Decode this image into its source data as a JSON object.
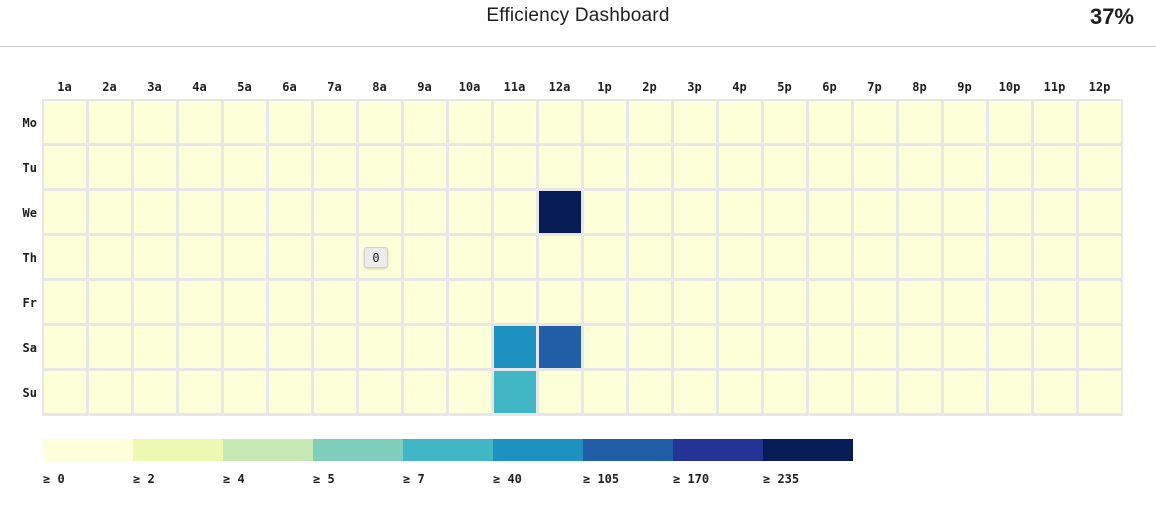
{
  "header": {
    "title": "Efficiency Dashboard",
    "efficiency_value": "37%"
  },
  "heatmap": {
    "hour_labels": [
      "1a",
      "2a",
      "3a",
      "4a",
      "5a",
      "6a",
      "7a",
      "8a",
      "9a",
      "10a",
      "11a",
      "12a",
      "1p",
      "2p",
      "3p",
      "4p",
      "5p",
      "6p",
      "7p",
      "8p",
      "9p",
      "10p",
      "11p",
      "12p"
    ],
    "day_labels": [
      "Mo",
      "Tu",
      "We",
      "Th",
      "Fr",
      "Sa",
      "Su"
    ],
    "base_color": "#fdffd9",
    "grid_line_color": "#e7e7e9",
    "highlighted_cells": [
      {
        "day": "We",
        "hour": "12a",
        "color": "#081d58",
        "bin": "≥ 235"
      },
      {
        "day": "Sa",
        "hour": "11a",
        "color": "#1d91c0",
        "bin": "≥ 40"
      },
      {
        "day": "Sa",
        "hour": "12a",
        "color": "#225ea8",
        "bin": "≥ 105"
      },
      {
        "day": "Su",
        "hour": "11a",
        "color": "#41b6c4",
        "bin": "≥ 7"
      }
    ],
    "tooltip": {
      "day": "Th",
      "hour": "8a",
      "value": "0"
    }
  },
  "legend": {
    "items": [
      {
        "label": "≥ 0",
        "color": "#ffffd9"
      },
      {
        "label": "≥ 2",
        "color": "#edf8b1"
      },
      {
        "label": "≥ 4",
        "color": "#c7e9b4"
      },
      {
        "label": "≥ 5",
        "color": "#7fcdbb"
      },
      {
        "label": "≥ 7",
        "color": "#41b6c4"
      },
      {
        "label": "≥ 40",
        "color": "#1d91c0"
      },
      {
        "label": "≥ 105",
        "color": "#225ea8"
      },
      {
        "label": "≥ 170",
        "color": "#253494"
      },
      {
        "label": "≥ 235",
        "color": "#081d58"
      }
    ]
  },
  "chart_data": {
    "type": "heatmap",
    "title": "Efficiency Dashboard",
    "x": [
      "1a",
      "2a",
      "3a",
      "4a",
      "5a",
      "6a",
      "7a",
      "8a",
      "9a",
      "10a",
      "11a",
      "12a",
      "1p",
      "2p",
      "3p",
      "4p",
      "5p",
      "6p",
      "7p",
      "8p",
      "9p",
      "10p",
      "11p",
      "12p"
    ],
    "y": [
      "Mo",
      "Tu",
      "We",
      "Th",
      "Fr",
      "Sa",
      "Su"
    ],
    "default_bin": "≥ 0",
    "cells": [
      {
        "x": "12a",
        "y": "We",
        "bin": "≥ 235",
        "color": "#081d58"
      },
      {
        "x": "8a",
        "y": "Th",
        "value": 0,
        "annotation": "0"
      },
      {
        "x": "11a",
        "y": "Sa",
        "bin": "≥ 40",
        "color": "#1d91c0"
      },
      {
        "x": "12a",
        "y": "Sa",
        "bin": "≥ 105",
        "color": "#225ea8"
      },
      {
        "x": "11a",
        "y": "Su",
        "bin": "≥ 7",
        "color": "#41b6c4"
      }
    ],
    "legend_bins": [
      {
        "label": "≥ 0",
        "color": "#ffffd9"
      },
      {
        "label": "≥ 2",
        "color": "#edf8b1"
      },
      {
        "label": "≥ 4",
        "color": "#c7e9b4"
      },
      {
        "label": "≥ 5",
        "color": "#7fcdbb"
      },
      {
        "label": "≥ 7",
        "color": "#41b6c4"
      },
      {
        "label": "≥ 40",
        "color": "#1d91c0"
      },
      {
        "label": "≥ 105",
        "color": "#225ea8"
      },
      {
        "label": "≥ 170",
        "color": "#253494"
      },
      {
        "label": "≥ 235",
        "color": "#081d58"
      }
    ],
    "legend_position": "bottom",
    "annotation_badge": {
      "x": "8a",
      "y": "Th",
      "text": "0"
    }
  }
}
